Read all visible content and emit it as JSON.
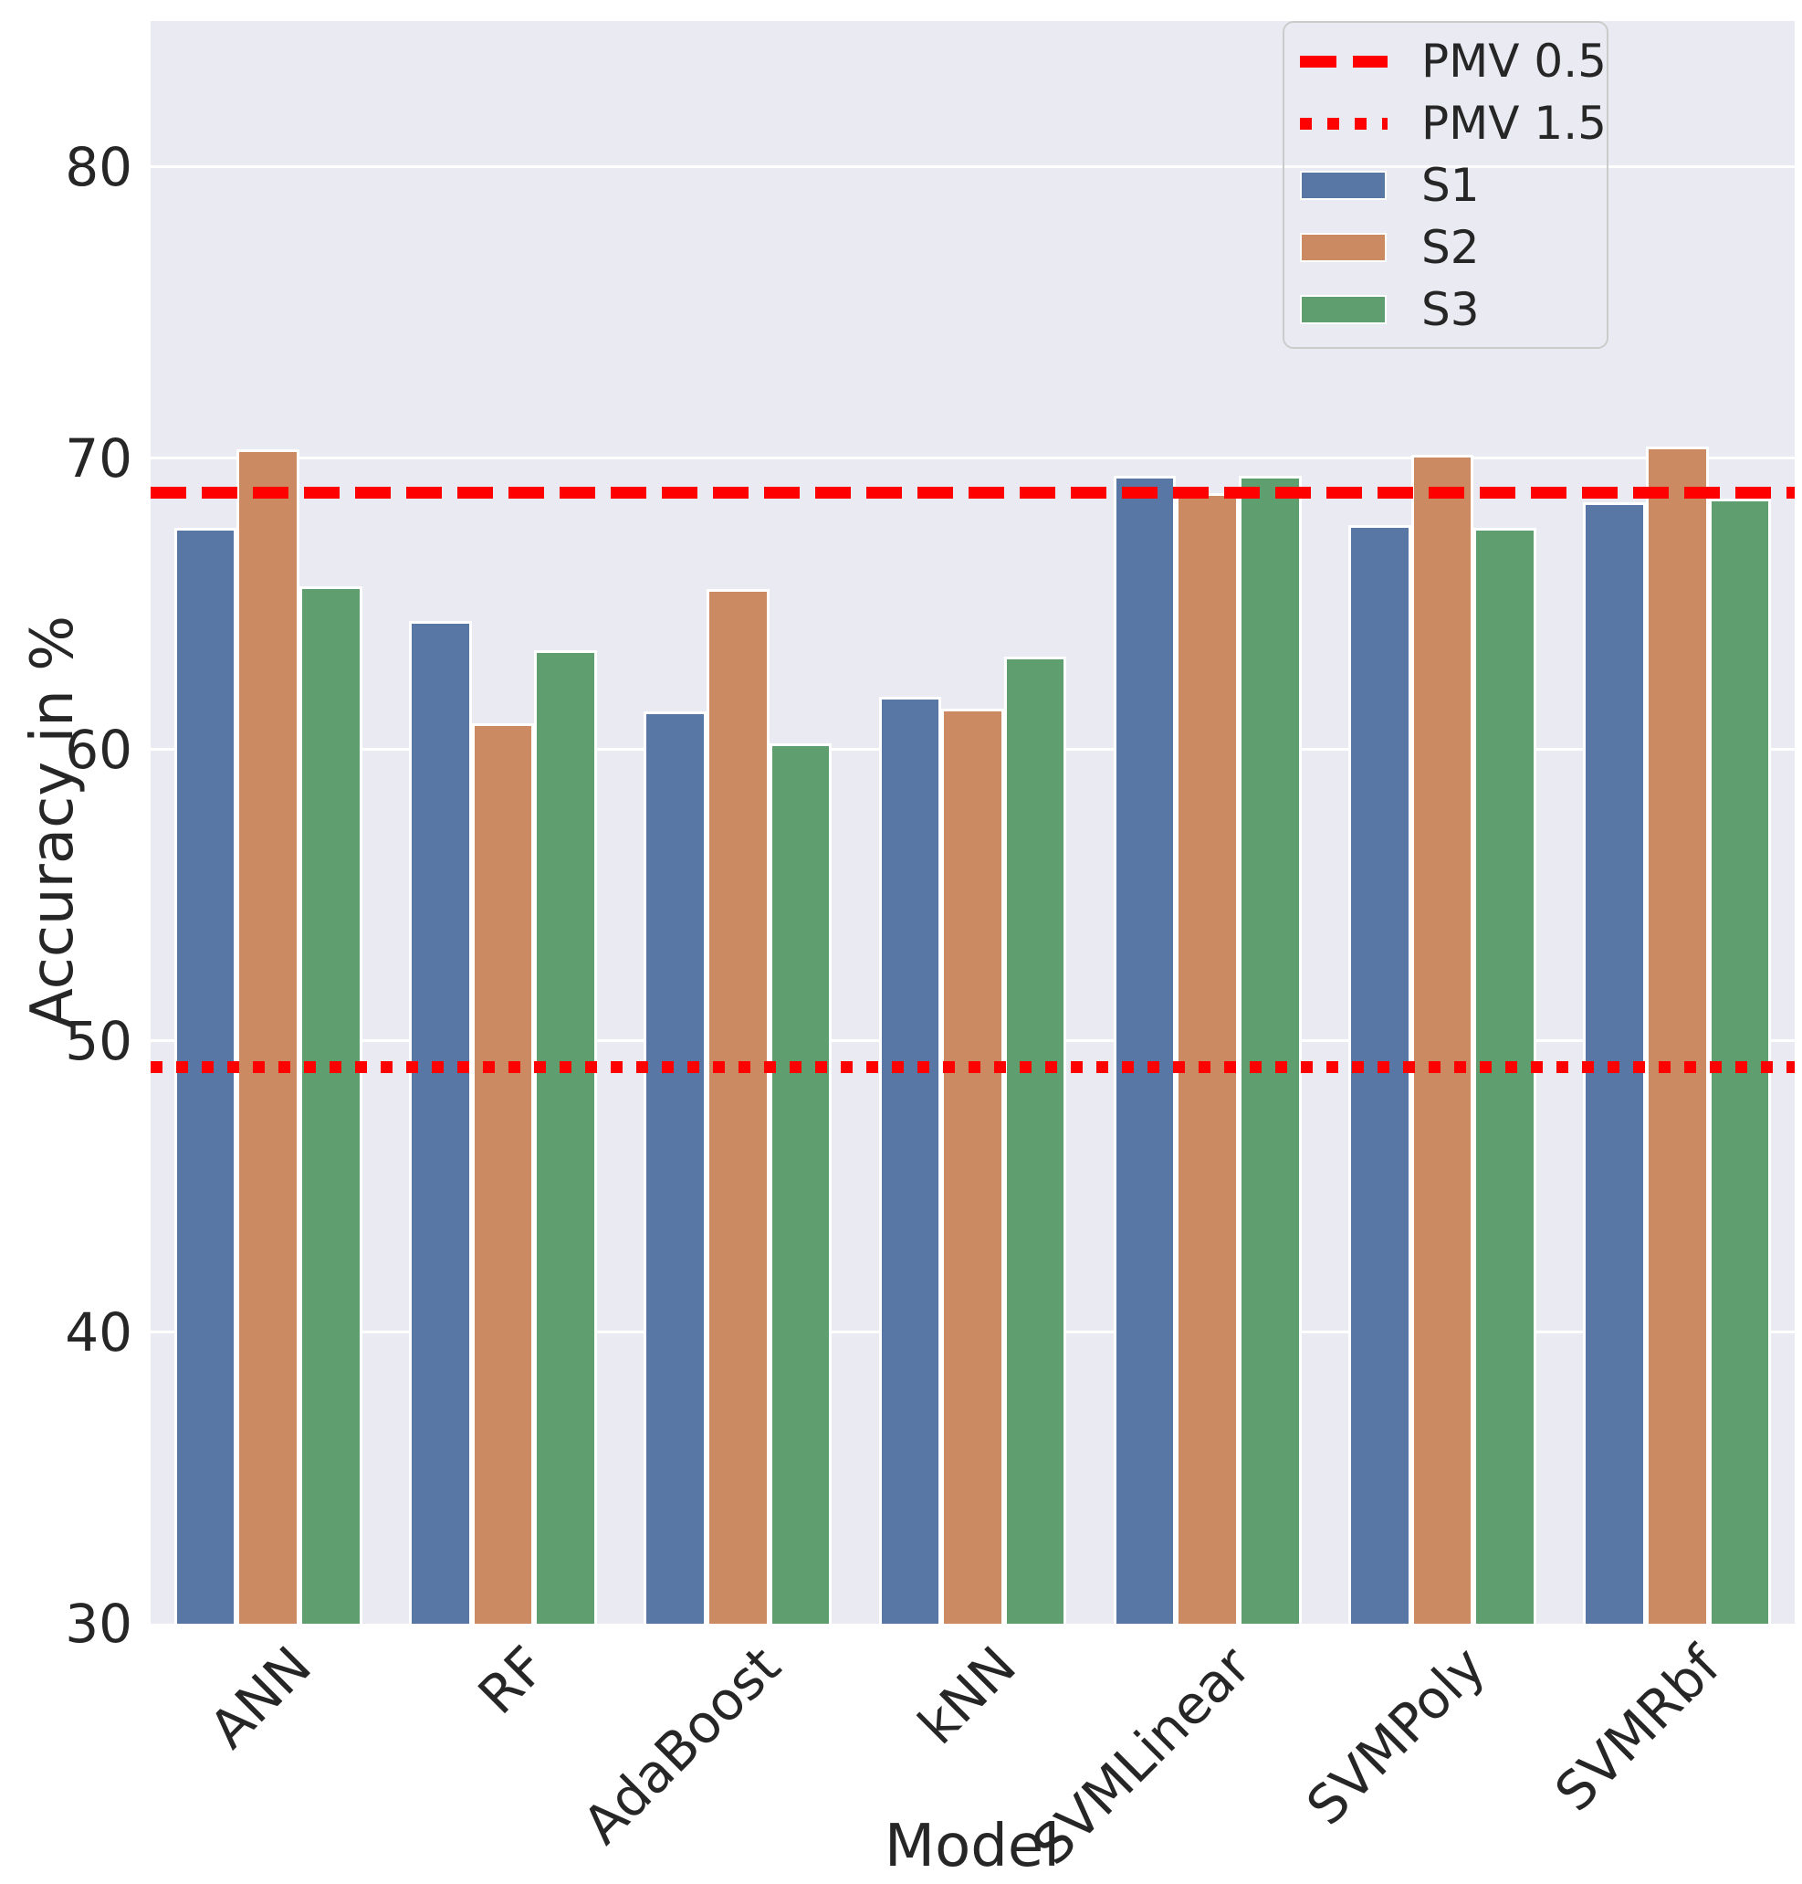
{
  "chart_data": {
    "type": "bar",
    "title": "",
    "xlabel": "Model",
    "ylabel": "Accuracy in %",
    "categories": [
      "ANN",
      "RF",
      "AdaBoost",
      "kNN",
      "SVMLinear",
      "SVMPoly",
      "SVMRbf"
    ],
    "series": [
      {
        "name": "S1",
        "color": "#5877a5",
        "values": [
          67.6,
          64.4,
          61.3,
          61.8,
          69.4,
          67.7,
          68.5
        ]
      },
      {
        "name": "S2",
        "color": "#cc8a62",
        "values": [
          70.3,
          60.9,
          65.5,
          61.4,
          68.8,
          70.1,
          70.4
        ]
      },
      {
        "name": "S3",
        "color": "#5e9e6f",
        "values": [
          65.6,
          63.4,
          60.2,
          63.2,
          69.4,
          67.6,
          68.6
        ]
      }
    ],
    "reference_lines": [
      {
        "label": "PMV 0.5",
        "value": 68.8,
        "style": "dashed",
        "color": "#ff0000"
      },
      {
        "label": "PMV 1.5",
        "value": 49.1,
        "style": "dotted",
        "color": "#ff0000"
      }
    ],
    "ylim": [
      30,
      85
    ],
    "yticks": [
      30,
      40,
      50,
      60,
      70,
      80
    ],
    "grid": true,
    "legend_position": "upper right",
    "plot_background": "#eaeaf2",
    "gridline_color": "#ffffff",
    "bar_group_width_fraction": 0.8
  }
}
